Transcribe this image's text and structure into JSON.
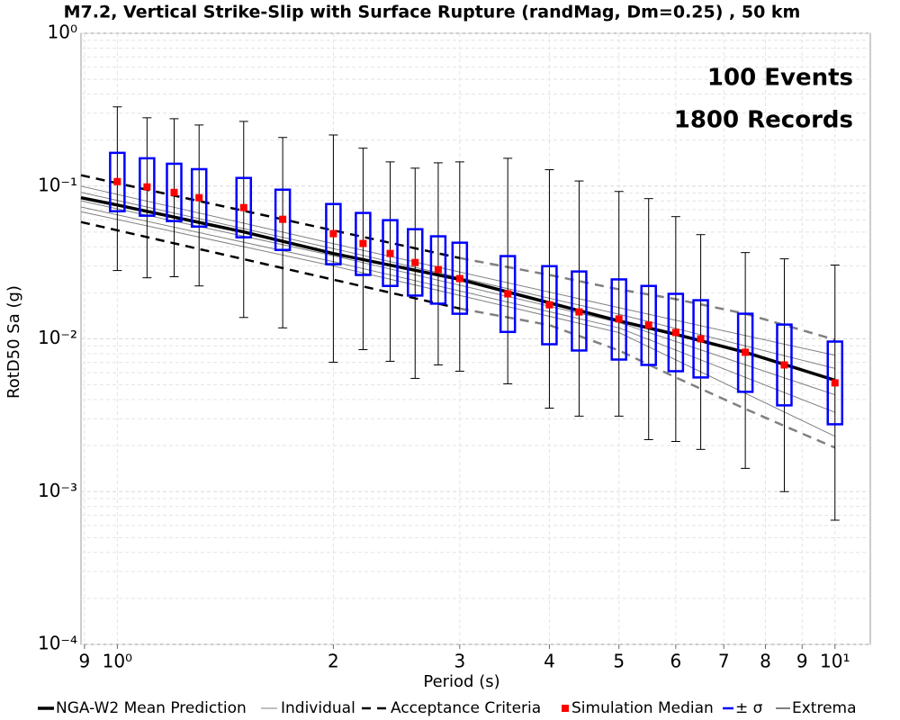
{
  "chart_data": {
    "type": "box",
    "title": "M7.2, Vertical Strike-Slip with Surface Rupture (randMag, Dm=0.25) , 50 km",
    "xlabel": "Period (s)",
    "ylabel": "RotD50 Sa (g)",
    "annotations": [
      "100 Events",
      "1800 Records"
    ],
    "xscale": "log",
    "yscale": "log",
    "grid": true,
    "xlim": [
      0.89,
      11.2
    ],
    "ylim": [
      0.0001,
      1
    ],
    "xticks": [
      {
        "value": 0.9,
        "label": "9"
      },
      {
        "value": 1,
        "label": "10⁰"
      },
      2,
      3,
      4,
      5,
      6,
      7,
      8,
      9,
      {
        "value": 10,
        "label": "10¹"
      }
    ],
    "yticks": [
      {
        "value": 0.0001,
        "label": "10⁻⁴"
      },
      {
        "value": 0.001,
        "label": "10⁻³"
      },
      {
        "value": 0.01,
        "label": "10⁻²"
      },
      {
        "value": 0.1,
        "label": "10⁻¹"
      },
      {
        "value": 1,
        "label": "10⁰"
      }
    ],
    "periods": [
      1.0,
      1.1,
      1.2,
      1.3,
      1.5,
      1.7,
      2.0,
      2.2,
      2.4,
      2.6,
      2.8,
      3.0,
      3.5,
      4.0,
      4.4,
      5.0,
      5.5,
      6.0,
      6.5,
      7.5,
      8.5,
      10
    ],
    "mean": {
      "name": "NGA-W2 Mean Prediction",
      "color": "#000000",
      "x": [
        0.89,
        1,
        1.5,
        2,
        3,
        4,
        5,
        6,
        7.5,
        10
      ],
      "values": [
        0.0839,
        0.0752,
        0.0501,
        0.0362,
        0.0245,
        0.0172,
        0.0131,
        0.0107,
        0.00817,
        0.00536
      ]
    },
    "individual": {
      "name": "Individual",
      "color": "#808080",
      "x": [
        0.89,
        2,
        5,
        10
      ],
      "lines": [
        [
          0.1,
          0.042,
          0.016,
          0.0078
        ],
        [
          0.091,
          0.039,
          0.0145,
          0.0064
        ],
        [
          0.08,
          0.035,
          0.0128,
          0.0043
        ],
        [
          0.073,
          0.032,
          0.0118,
          0.0033
        ],
        [
          0.068,
          0.03,
          0.011,
          0.0023
        ]
      ]
    },
    "acceptance": {
      "name": "Acceptance Criteria",
      "segments": [
        {
          "color": "#000000",
          "x": [
            0.89,
            3
          ],
          "upper": [
            0.1177,
            0.0338
          ],
          "lower": [
            0.0582,
            0.0158
          ]
        },
        {
          "color": "#808080",
          "x": [
            3,
            4,
            5,
            6,
            7.5,
            8.5,
            10
          ],
          "upper": [
            0.0338,
            0.0262,
            0.0211,
            0.0182,
            0.0146,
            0.0123,
            0.00986
          ],
          "lower": [
            0.0158,
            0.0123,
            0.00839,
            0.00559,
            0.00348,
            0.00269,
            0.00194
          ]
        }
      ]
    },
    "median": {
      "name": "Simulation Median",
      "color": "#ff0000",
      "values": [
        0.107,
        0.0987,
        0.0909,
        0.0839,
        0.0723,
        0.0606,
        0.0488,
        0.0421,
        0.0362,
        0.0316,
        0.0284,
        0.0248,
        0.0197,
        0.0167,
        0.015,
        0.0135,
        0.0123,
        0.011,
        0.01,
        0.00817,
        0.00675,
        0.00515
      ]
    },
    "sigma": {
      "name": "± σ",
      "color": "#0000ff",
      "upper": [
        0.165,
        0.152,
        0.14,
        0.129,
        0.113,
        0.0947,
        0.0763,
        0.0667,
        0.0598,
        0.0522,
        0.0469,
        0.0426,
        0.0348,
        0.0299,
        0.0276,
        0.0245,
        0.0222,
        0.0197,
        0.0179,
        0.0146,
        0.0124,
        0.0096
      ],
      "lower": [
        0.0684,
        0.064,
        0.059,
        0.0543,
        0.0462,
        0.0382,
        0.0308,
        0.0262,
        0.0222,
        0.0192,
        0.017,
        0.0146,
        0.0111,
        0.00922,
        0.00839,
        0.00732,
        0.00675,
        0.00614,
        0.00559,
        0.0045,
        0.00367,
        0.00276
      ]
    },
    "extrema": {
      "name": "Extrema",
      "color": "#000000",
      "max": [
        0.33,
        0.28,
        0.276,
        0.251,
        0.265,
        0.208,
        0.216,
        0.177,
        0.144,
        0.131,
        0.142,
        0.144,
        0.152,
        0.128,
        0.108,
        0.0922,
        0.0828,
        0.0631,
        0.0481,
        0.0367,
        0.0334,
        0.0304
      ],
      "min": [
        0.028,
        0.0251,
        0.0255,
        0.0222,
        0.0138,
        0.0118,
        0.00703,
        0.0085,
        0.00713,
        0.00551,
        0.00675,
        0.00614,
        0.00508,
        0.00352,
        0.00312,
        0.00312,
        0.00219,
        0.00213,
        0.00189,
        0.00142,
        0.001,
        0.00065
      ]
    }
  }
}
